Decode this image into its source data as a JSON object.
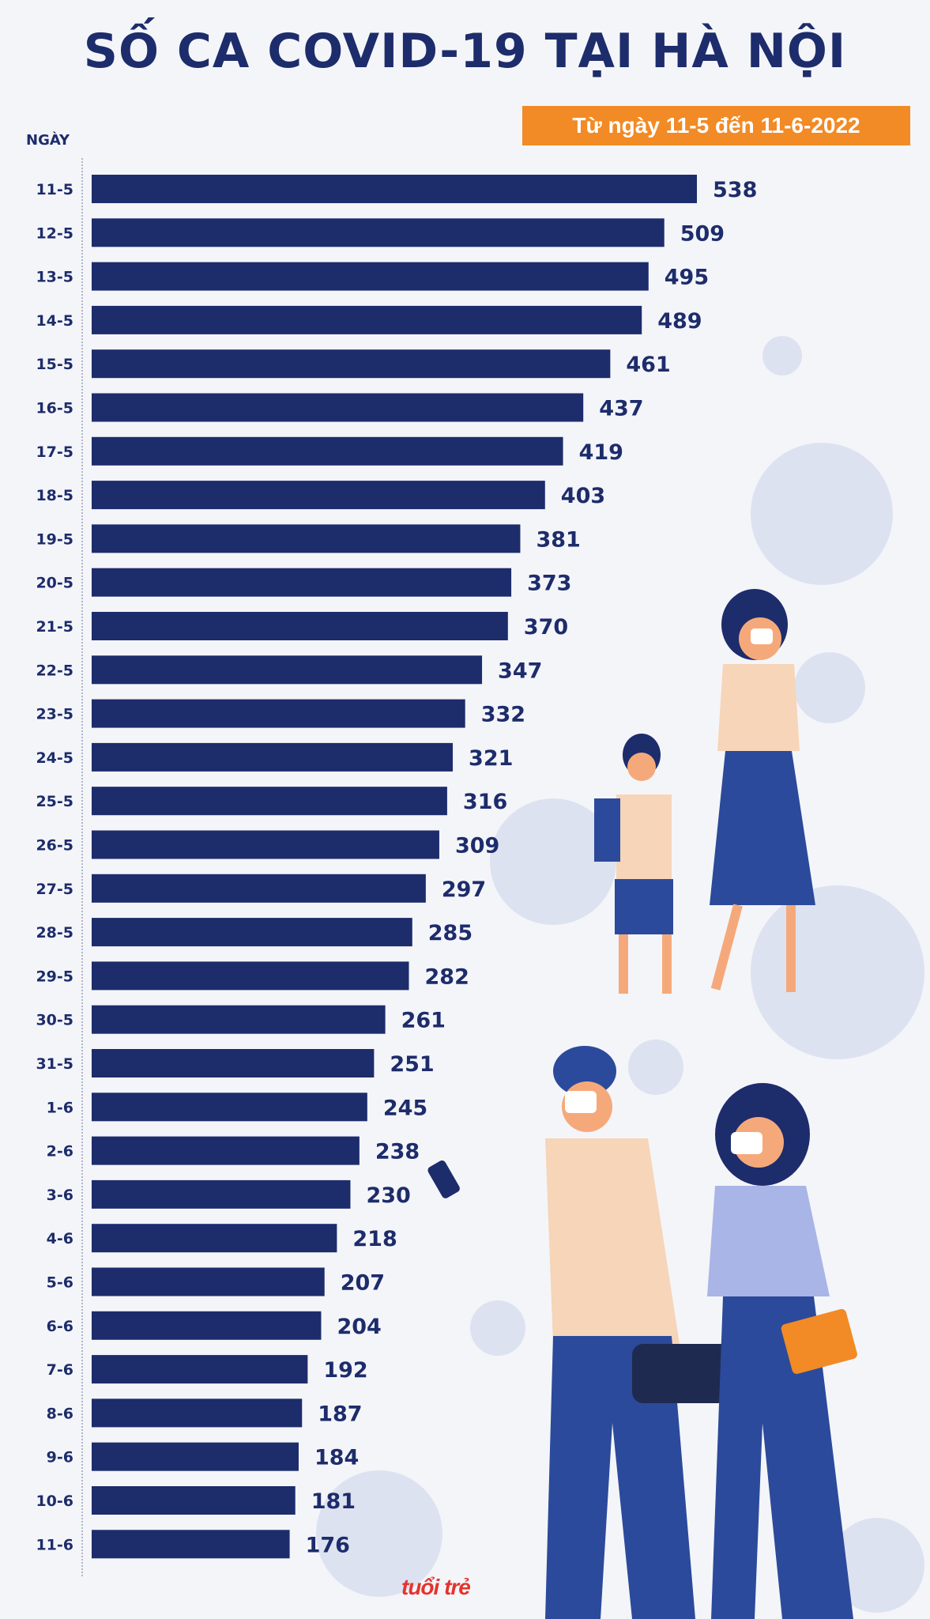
{
  "header": {
    "title": "SỐ CA COVID-19 TẠI HÀ NỘI",
    "subtitle": "Từ ngày 11-5 đến 11-6-2022"
  },
  "logo_text": "tuổi trẻ",
  "colors": {
    "bar": "#1d2c6b",
    "subtitle_bg": "#f28a25",
    "background": "#f4f5f9",
    "virus": "#d9def0"
  },
  "chart_data": {
    "type": "bar",
    "orientation": "horizontal",
    "ylabel": "NGÀY",
    "categories": [
      "11-5",
      "12-5",
      "13-5",
      "14-5",
      "15-5",
      "16-5",
      "17-5",
      "18-5",
      "19-5",
      "20-5",
      "21-5",
      "22-5",
      "23-5",
      "24-5",
      "25-5",
      "26-5",
      "27-5",
      "28-5",
      "29-5",
      "30-5",
      "31-5",
      "1-6",
      "2-6",
      "3-6",
      "4-6",
      "5-6",
      "6-6",
      "7-6",
      "8-6",
      "9-6",
      "10-6",
      "11-6"
    ],
    "values": [
      538,
      509,
      495,
      489,
      461,
      437,
      419,
      403,
      381,
      373,
      370,
      347,
      332,
      321,
      316,
      309,
      297,
      285,
      282,
      261,
      251,
      245,
      238,
      230,
      218,
      207,
      204,
      192,
      187,
      184,
      181,
      176
    ],
    "grid": false,
    "data_labels": true
  }
}
